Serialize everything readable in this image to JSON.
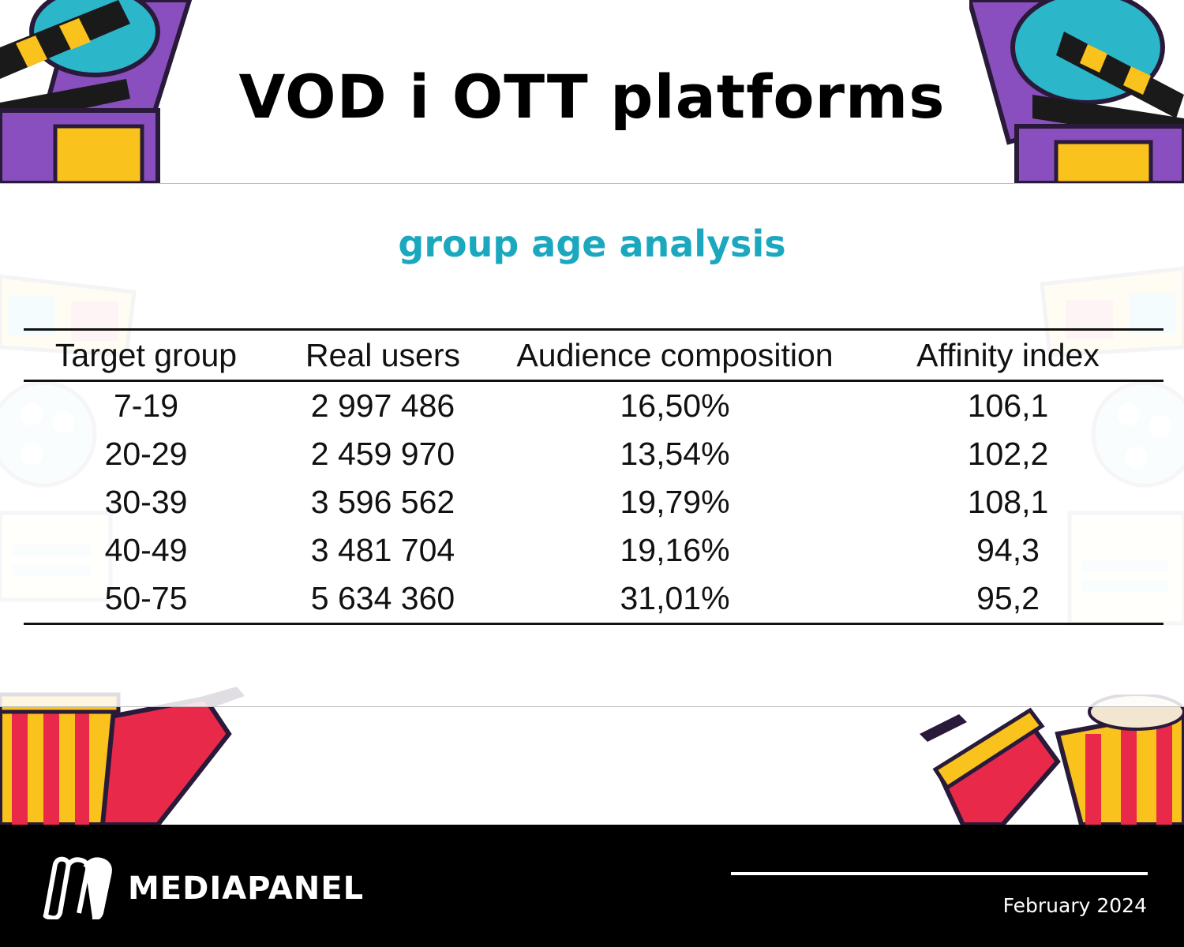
{
  "page": {
    "title": "VOD i OTT platforms",
    "subtitle": "group age analysis"
  },
  "chart_data": {
    "type": "table",
    "columns": [
      "Target group",
      "Real users",
      "Audience composition",
      "Affinity index"
    ],
    "rows": [
      [
        "7-19",
        "2 997 486",
        "16,50%",
        "106,1"
      ],
      [
        "20-29",
        "2 459 970",
        "13,54%",
        "102,2"
      ],
      [
        "30-39",
        "3 596 562",
        "19,79%",
        "108,1"
      ],
      [
        "40-49",
        "3 481 704",
        "19,16%",
        "94,3"
      ],
      [
        "50-75",
        "5 634 360",
        "31,01%",
        "95,2"
      ]
    ]
  },
  "footer": {
    "brand": "MEDIAPANEL",
    "date": "February 2024"
  },
  "colors": {
    "subtitle": "#1ba8bf",
    "footer_background": "#000000",
    "popcorn_red": "#e8294a",
    "popcorn_yellow": "#f9c21c",
    "clapper_purple": "#8a4fbf",
    "clapper_teal": "#2bb6c9"
  },
  "decorations": [
    "film-clapperboard-icon",
    "3d-glasses-icon",
    "film-reel-icon",
    "ticket-icon",
    "popcorn-bucket-icon",
    "soda-cup-icon"
  ]
}
